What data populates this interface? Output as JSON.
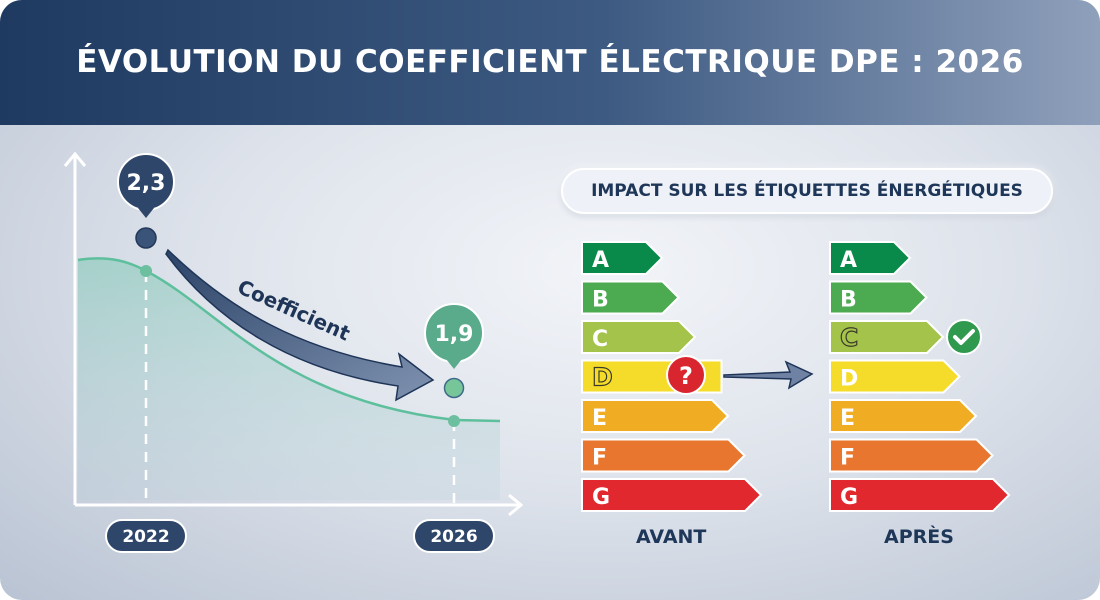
{
  "header": {
    "title": "ÉVOLUTION DU COEFFICIENT ÉLECTRIQUE DPE : 2026"
  },
  "chart": {
    "start_value": "2,3",
    "end_value": "1,9",
    "arrow_label": "Coefficient",
    "start_year": "2022",
    "end_year": "2026"
  },
  "impact": {
    "title": "IMPACT SUR LES ÉTIQUETTES ÉNERGÉTIQUES",
    "before_label": "AVANT",
    "after_label": "APRÈS",
    "before_rating": "D",
    "after_rating": "C",
    "classes": [
      {
        "letter": "A",
        "color": "#0a8a4a"
      },
      {
        "letter": "B",
        "color": "#4caa50"
      },
      {
        "letter": "C",
        "color": "#a4c34a"
      },
      {
        "letter": "D",
        "color": "#f6dc2a"
      },
      {
        "letter": "E",
        "color": "#f0ad23"
      },
      {
        "letter": "F",
        "color": "#e8762e"
      },
      {
        "letter": "G",
        "color": "#e0282e"
      }
    ],
    "question_mark": "?"
  }
}
